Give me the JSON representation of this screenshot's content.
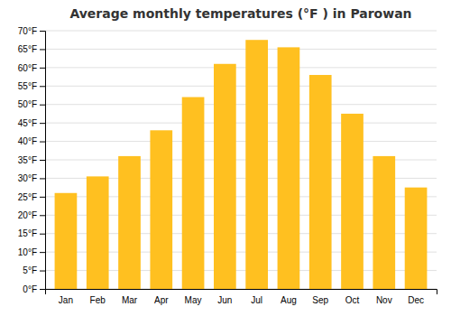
{
  "chart_data": {
    "type": "bar",
    "title": "Average monthly temperatures (°F ) in Parowan",
    "categories": [
      "Jan",
      "Feb",
      "Mar",
      "Apr",
      "May",
      "Jun",
      "Jul",
      "Aug",
      "Sep",
      "Oct",
      "Nov",
      "Dec"
    ],
    "values": [
      26,
      30.5,
      36,
      43,
      52,
      61,
      67.5,
      65.5,
      58,
      47.5,
      36,
      27.5
    ],
    "color": "#FFC020",
    "ylim": [
      0,
      70
    ],
    "yticks": [
      {
        "value": 0,
        "label": "0°F"
      },
      {
        "value": 5,
        "label": "5°F"
      },
      {
        "value": 10,
        "label": "10°F"
      },
      {
        "value": 15,
        "label": "15°F"
      },
      {
        "value": 20,
        "label": "20°F"
      },
      {
        "value": 25,
        "label": "25°F"
      },
      {
        "value": 30,
        "label": "30°F"
      },
      {
        "value": 35,
        "label": "35°F"
      },
      {
        "value": 40,
        "label": "40°F"
      },
      {
        "value": 45,
        "label": "45°F"
      },
      {
        "value": 50,
        "label": "50°F"
      },
      {
        "value": 55,
        "label": "55°F"
      },
      {
        "value": 60,
        "label": "60°F"
      },
      {
        "value": 65,
        "label": "65°F"
      },
      {
        "value": 70,
        "label": "70°F"
      }
    ],
    "grid": true
  }
}
